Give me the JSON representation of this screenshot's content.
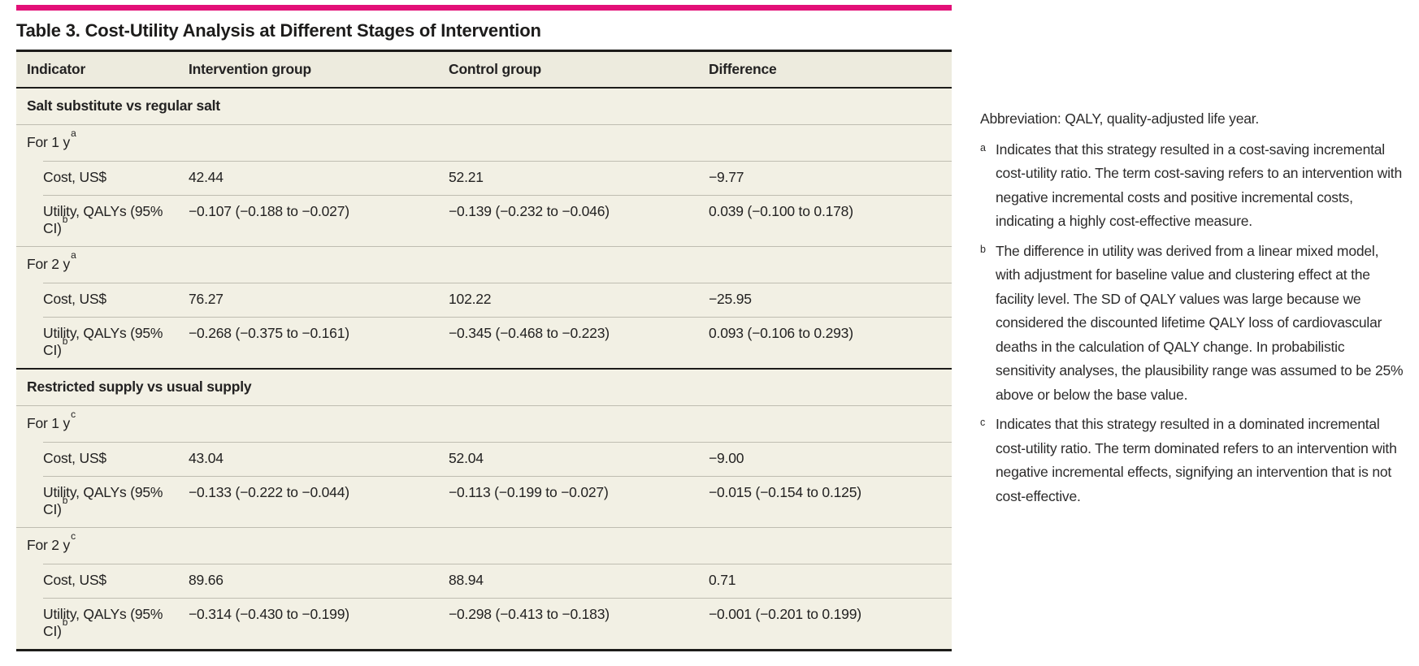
{
  "accent_color": "#e31078",
  "title": "Table 3. Cost-Utility Analysis at Different Stages of Intervention",
  "table": {
    "headers": [
      "Indicator",
      "Intervention group",
      "Control group",
      "Difference"
    ],
    "sections": [
      {
        "label": "Salt substitute vs regular salt",
        "periods": [
          {
            "label": "For 1 y",
            "marker": "a",
            "rows": [
              {
                "indicator": "Cost, US$",
                "values": [
                  "42.44",
                  "52.21",
                  "−9.77"
                ]
              },
              {
                "indicator": "Utility, QALYs (95% CI)",
                "sup": "b",
                "values": [
                  "−0.107 (−0.188 to −0.027)",
                  "−0.139 (−0.232 to −0.046)",
                  "0.039 (−0.100 to 0.178)"
                ]
              }
            ]
          },
          {
            "label": "For 2 y",
            "marker": "a",
            "rows": [
              {
                "indicator": "Cost, US$",
                "values": [
                  "76.27",
                  "102.22",
                  "−25.95"
                ]
              },
              {
                "indicator": "Utility, QALYs (95% CI)",
                "sup": "b",
                "values": [
                  "−0.268 (−0.375 to −0.161)",
                  "−0.345 (−0.468 to −0.223)",
                  "0.093 (−0.106 to 0.293)"
                ]
              }
            ]
          }
        ]
      },
      {
        "label": "Restricted supply vs usual supply",
        "periods": [
          {
            "label": "For 1 y",
            "marker": "c",
            "rows": [
              {
                "indicator": "Cost, US$",
                "values": [
                  "43.04",
                  "52.04",
                  "−9.00"
                ]
              },
              {
                "indicator": "Utility, QALYs (95% CI)",
                "sup": "b",
                "values": [
                  "−0.133 (−0.222 to −0.044)",
                  "−0.113 (−0.199 to −0.027)",
                  "−0.015 (−0.154 to 0.125)"
                ]
              }
            ]
          },
          {
            "label": "For 2 y",
            "marker": "c",
            "rows": [
              {
                "indicator": "Cost, US$",
                "values": [
                  "89.66",
                  "88.94",
                  "0.71"
                ]
              },
              {
                "indicator": "Utility, QALYs (95% CI)",
                "sup": "b",
                "values": [
                  "−0.314 (−0.430 to −0.199)",
                  "−0.298 (−0.413 to −0.183)",
                  "−0.001 (−0.201 to 0.199)"
                ]
              }
            ]
          }
        ]
      }
    ]
  },
  "footnotes": {
    "abbreviation": "Abbreviation: QALY, quality-adjusted life year.",
    "items": [
      {
        "marker": "a",
        "text": "Indicates that this strategy resulted in a cost-saving incremental cost-utility ratio. The term cost-saving refers to an intervention with negative incremental costs and positive incremental costs, indicating a highly cost-effective measure."
      },
      {
        "marker": "b",
        "text": "The difference in utility was derived from a linear mixed model, with adjustment for baseline value and clustering effect at the facility level. The SD of QALY values was large because we considered the discounted lifetime QALY loss of cardiovascular deaths in the calculation of QALY change. In probabilistic sensitivity analyses, the plausibility range was assumed to be 25% above or below the base value."
      },
      {
        "marker": "c",
        "text": "Indicates that this strategy resulted in a dominated incremental cost-utility ratio. The term dominated refers to an intervention with negative incremental effects, signifying an intervention that is not cost-effective."
      }
    ]
  }
}
